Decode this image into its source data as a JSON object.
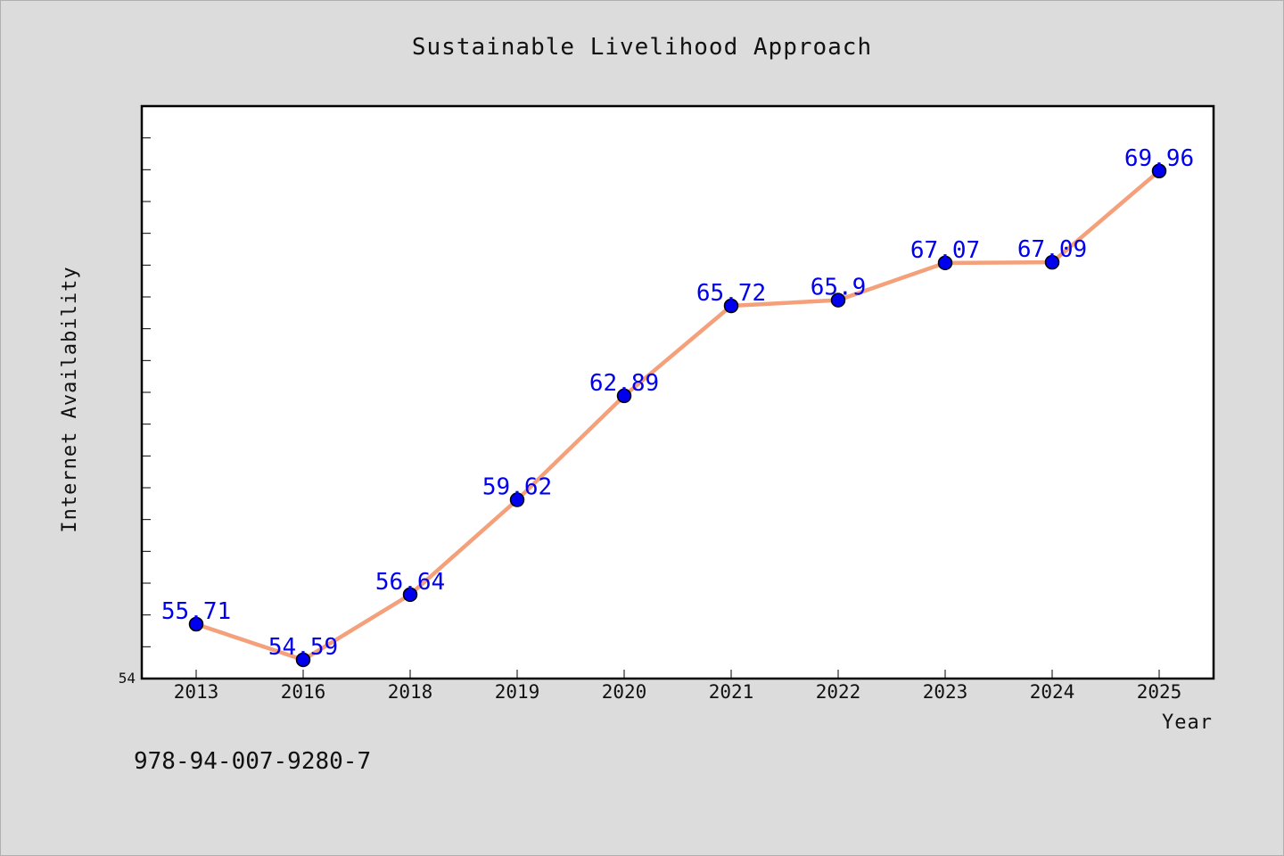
{
  "chart_data": {
    "type": "line",
    "title": "Sustainable Livelihood Approach",
    "xlabel": "Year",
    "ylabel": "Internet Availability",
    "categories": [
      "2013",
      "2016",
      "2018",
      "2019",
      "2020",
      "2021",
      "2022",
      "2023",
      "2024",
      "2025"
    ],
    "series": [
      {
        "values": [
          55.71,
          54.59,
          56.64,
          59.62,
          62.89,
          65.72,
          65.9,
          67.07,
          67.09,
          69.96
        ]
      }
    ],
    "data_labels": [
      "55.71",
      "54.59",
      "56.64",
      "59.62",
      "62.89",
      "65.72",
      "65.9",
      "67.07",
      "67.09",
      "69.96"
    ],
    "ylim": [
      54,
      72
    ],
    "y_tick_labels": [
      "54"
    ],
    "y_minor_tick_step": 1,
    "grid": false,
    "legend": "none",
    "line_color": "#f4a07a",
    "marker_color": "#0000ee",
    "label_color": "#0000ee"
  },
  "footnote": "978-94-007-9280-7"
}
